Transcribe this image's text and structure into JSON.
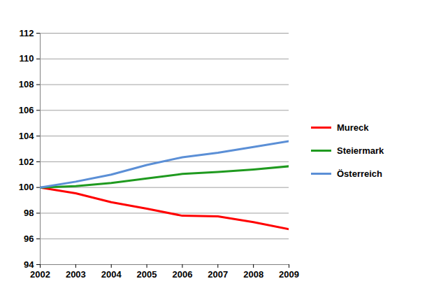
{
  "chart_data": {
    "type": "line",
    "x": [
      2002,
      2003,
      2004,
      2005,
      2006,
      2007,
      2008,
      2009
    ],
    "series": [
      {
        "name": "Mureck",
        "color": "#ff0000",
        "values": [
          100,
          99.55,
          98.85,
          98.35,
          97.8,
          97.75,
          97.3,
          96.75
        ]
      },
      {
        "name": "Steiermark",
        "color": "#1f9a1f",
        "values": [
          100,
          100.1,
          100.35,
          100.7,
          101.05,
          101.2,
          101.4,
          101.65
        ]
      },
      {
        "name": "Österreich",
        "color": "#5b8fd6",
        "values": [
          100,
          100.45,
          101.0,
          101.75,
          102.35,
          102.7,
          103.15,
          103.6
        ]
      }
    ],
    "xlim": [
      2002,
      2009
    ],
    "xticks": [
      2002,
      2003,
      2004,
      2005,
      2006,
      2007,
      2008,
      2009
    ],
    "ylim": [
      94,
      112
    ],
    "yticks": [
      94,
      96,
      98,
      100,
      102,
      104,
      106,
      108,
      110,
      112
    ],
    "grid": true,
    "legend": "right"
  }
}
